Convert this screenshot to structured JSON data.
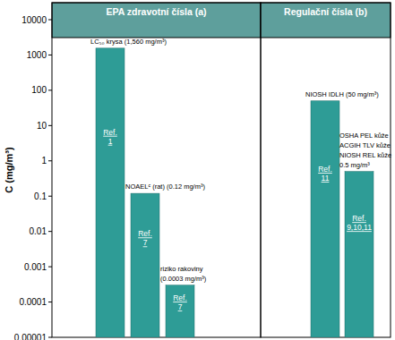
{
  "chart_data": [
    {
      "type": "bar",
      "title": "EPA zdravotní čísla (a)",
      "ylabel": "C (mg/m³)",
      "categories": [
        null,
        null,
        null
      ],
      "values": [
        1560,
        0.12,
        0.0003
      ],
      "annotations": [
        [
          "LC₅₀ krysa (1,560 mg/m³)"
        ],
        [
          "NOAELᶜ (rat) (0.12 mg/m³)"
        ],
        [
          "riziko rakoviny",
          "(0.0003 mg/m³)"
        ]
      ],
      "bar_texts": [
        "Ref. 1",
        "Ref. 7",
        "Ref. 7"
      ],
      "color": "#2e9c96",
      "log": "y",
      "grid": false,
      "ylim": [
        1e-05,
        10000
      ],
      "yticks": [
        1e-05,
        0.0001,
        0.001,
        0.01,
        0.1,
        1,
        10,
        100,
        1000,
        10000
      ]
    },
    {
      "type": "bar",
      "title": "Regulační čísla (b)",
      "categories": [
        null,
        null
      ],
      "values": [
        50,
        0.5
      ],
      "annotations": [
        [
          "NIOSH IDLH (50 mg/m³)"
        ],
        [
          "OSHA PEL kůže",
          "ACGIH TLV kůže",
          "NIOSH REL kůže",
          "0.5 mg/m³"
        ]
      ],
      "bar_texts": [
        "Ref. 11",
        "Ref. 9,10,11"
      ],
      "color": "#2e9c96",
      "log": "y",
      "grid": false,
      "tick_labels": false,
      "ylim": [
        1e-05,
        10000
      ]
    }
  ]
}
